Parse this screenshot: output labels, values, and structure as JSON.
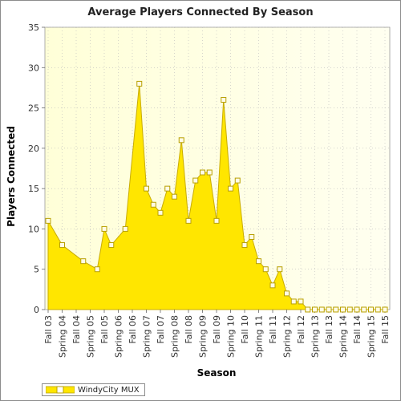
{
  "chart_data": {
    "type": "area",
    "title": "Average Players Connected By Season",
    "xlabel": "Season",
    "ylabel": "Players Connected",
    "ylim": [
      0,
      35
    ],
    "yticks": [
      0,
      5,
      10,
      15,
      20,
      25,
      30,
      35
    ],
    "xtick_labels": [
      "Fall 03",
      "Spring 04",
      "Fall 04",
      "Spring 05",
      "Fall 05",
      "Spring 06",
      "Fall 06",
      "Spring 07",
      "Fall 07",
      "Spring 08",
      "Fall 08",
      "Spring 09",
      "Fall 09",
      "Spring 10",
      "Fall 10",
      "Spring 11",
      "Fall 11",
      "Spring 12",
      "Fall 12",
      "Spring 13",
      "Fall 13",
      "Spring 14",
      "Fall 14",
      "Spring 15",
      "Fall 15"
    ],
    "grid": true,
    "legend_position": "bottom-left",
    "series": [
      {
        "name": "WindyCity MUX",
        "color": "#ffe600",
        "points": [
          {
            "x": 0.0,
            "y": 11
          },
          {
            "x": 1.0,
            "y": 8
          },
          {
            "x": 2.5,
            "y": 6
          },
          {
            "x": 3.5,
            "y": 5
          },
          {
            "x": 4.0,
            "y": 10
          },
          {
            "x": 4.5,
            "y": 8
          },
          {
            "x": 5.5,
            "y": 10
          },
          {
            "x": 6.5,
            "y": 28
          },
          {
            "x": 7.0,
            "y": 15
          },
          {
            "x": 7.5,
            "y": 13
          },
          {
            "x": 8.0,
            "y": 12
          },
          {
            "x": 8.5,
            "y": 15
          },
          {
            "x": 9.0,
            "y": 14
          },
          {
            "x": 9.5,
            "y": 21
          },
          {
            "x": 10.0,
            "y": 11
          },
          {
            "x": 10.5,
            "y": 16
          },
          {
            "x": 11.0,
            "y": 17
          },
          {
            "x": 11.5,
            "y": 17
          },
          {
            "x": 12.0,
            "y": 11
          },
          {
            "x": 12.5,
            "y": 26
          },
          {
            "x": 13.0,
            "y": 15
          },
          {
            "x": 13.5,
            "y": 16
          },
          {
            "x": 14.0,
            "y": 8
          },
          {
            "x": 14.5,
            "y": 9
          },
          {
            "x": 15.0,
            "y": 6
          },
          {
            "x": 15.5,
            "y": 5
          },
          {
            "x": 16.0,
            "y": 3
          },
          {
            "x": 16.5,
            "y": 5
          },
          {
            "x": 17.0,
            "y": 2
          },
          {
            "x": 17.5,
            "y": 1
          },
          {
            "x": 18.0,
            "y": 1
          },
          {
            "x": 18.5,
            "y": 0
          },
          {
            "x": 19.0,
            "y": 0
          },
          {
            "x": 19.5,
            "y": 0
          },
          {
            "x": 20.0,
            "y": 0
          },
          {
            "x": 20.5,
            "y": 0
          },
          {
            "x": 21.0,
            "y": 0
          },
          {
            "x": 21.5,
            "y": 0
          },
          {
            "x": 22.0,
            "y": 0
          },
          {
            "x": 22.5,
            "y": 0
          },
          {
            "x": 23.0,
            "y": 0
          },
          {
            "x": 23.5,
            "y": 0
          },
          {
            "x": 24.0,
            "y": 0
          }
        ]
      }
    ]
  }
}
